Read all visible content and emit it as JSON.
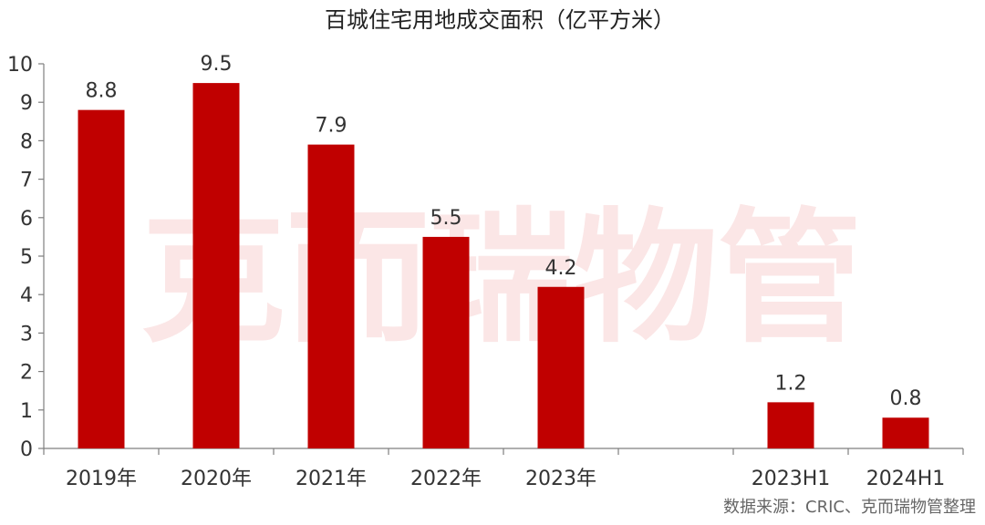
{
  "chart_data": {
    "type": "bar",
    "title": "百城住宅用地成交面积（亿平方米）",
    "categories": [
      "2019年",
      "2020年",
      "2021年",
      "2022年",
      "2023年",
      "",
      "2023H1",
      "2024H1"
    ],
    "values": [
      8.8,
      9.5,
      7.9,
      5.5,
      4.2,
      null,
      1.2,
      0.8
    ],
    "data_labels": [
      "8.8",
      "9.5",
      "7.9",
      "5.5",
      "4.2",
      "",
      "1.2",
      "0.8"
    ],
    "y_ticks": [
      "0",
      "1",
      "2",
      "3",
      "4",
      "5",
      "6",
      "7",
      "8",
      "9",
      "10"
    ],
    "ylim": [
      0,
      10
    ],
    "xlabel": "",
    "ylabel": "",
    "bar_color": "#c00000",
    "grid": false,
    "legend": "none"
  },
  "watermark": "克而瑞物管",
  "source_note": "数据来源：CRIC、克而瑞物管整理"
}
